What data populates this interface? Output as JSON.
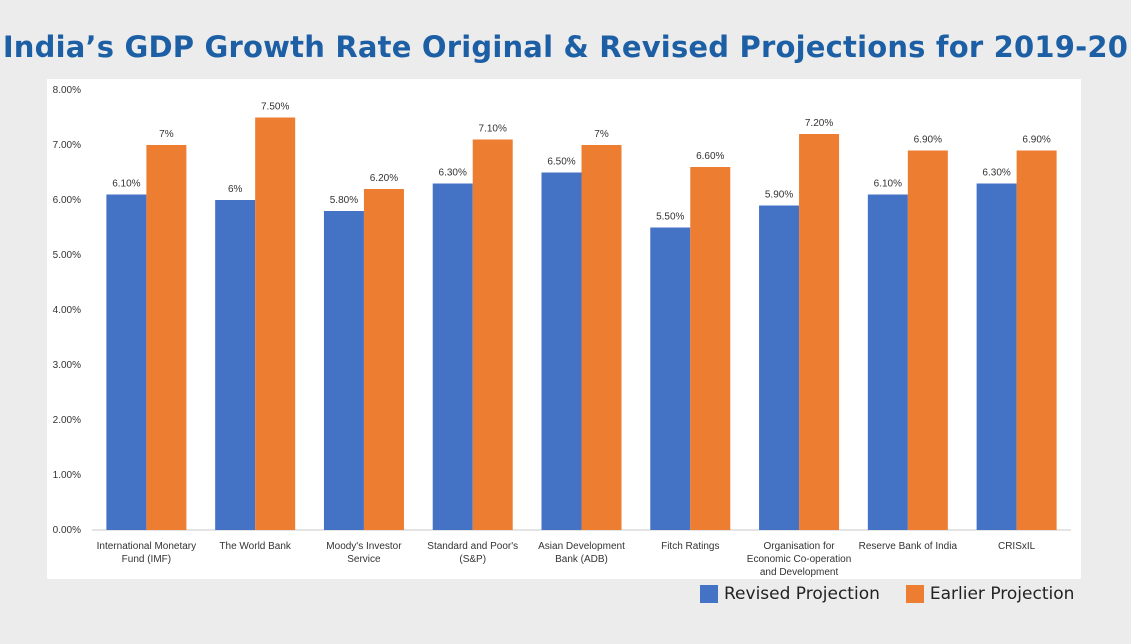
{
  "chart_data": {
    "type": "bar",
    "title": "India’s GDP Growth Rate Original & Revised Projections for 2019-20",
    "categories": [
      [
        "International Monetary",
        "Fund (IMF)"
      ],
      [
        "The World Bank"
      ],
      [
        "Moody's Investor",
        "Service"
      ],
      [
        "Standard and Poor's",
        "(S&P)"
      ],
      [
        "Asian Development",
        "Bank (ADB)"
      ],
      [
        "Fitch Ratings"
      ],
      [
        "Organisation for",
        "Economic Co-operation",
        "and Development"
      ],
      [
        "Reserve Bank of India"
      ],
      [
        "CRISxIL"
      ]
    ],
    "series": [
      {
        "name": "Revised Projection",
        "color": "#4472c4",
        "values": [
          6.1,
          6.0,
          5.8,
          6.3,
          6.5,
          5.5,
          5.9,
          6.1,
          6.3
        ],
        "labels": [
          "6.10%",
          "6%",
          "5.80%",
          "6.30%",
          "6.50%",
          "5.50%",
          "5.90%",
          "6.10%",
          "6.30%"
        ]
      },
      {
        "name": "Earlier Projection",
        "color": "#ed7d31",
        "values": [
          7.0,
          7.5,
          6.2,
          7.1,
          7.0,
          6.6,
          7.2,
          6.9,
          6.9
        ],
        "labels": [
          "7%",
          "7.50%",
          "6.20%",
          "7.10%",
          "7%",
          "6.60%",
          "7.20%",
          "6.90%",
          "6.90%"
        ]
      }
    ],
    "ylim": [
      0,
      8
    ],
    "yticks": [
      "0.00%",
      "1.00%",
      "2.00%",
      "3.00%",
      "4.00%",
      "5.00%",
      "6.00%",
      "7.00%",
      "8.00%"
    ],
    "grid": false,
    "legend": "bottom-right"
  }
}
